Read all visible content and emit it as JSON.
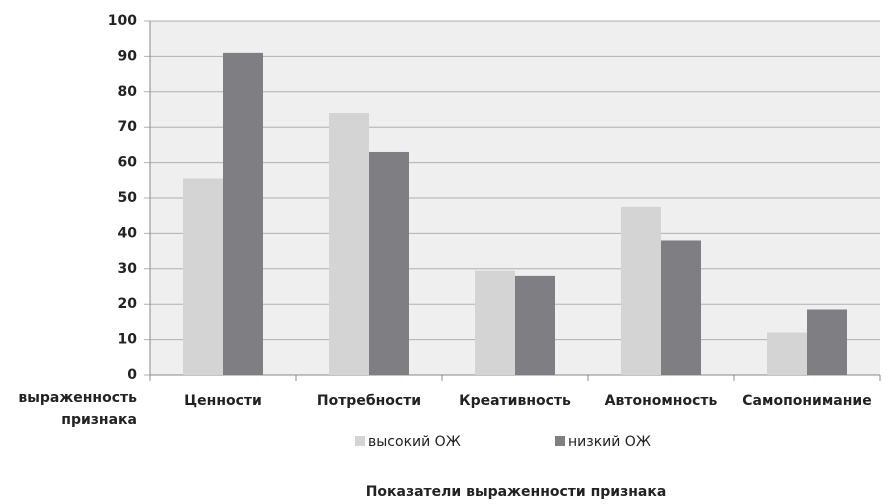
{
  "chart_data": {
    "type": "bar",
    "title": "Показатели выраженности признака",
    "y_label": "выраженность признака",
    "categories": [
      "Ценности",
      "Потребности",
      "Креативность",
      "Автономность",
      "Самопонимание"
    ],
    "series": [
      {
        "name": "высокий ОЖ",
        "color": "#d4d4d4",
        "values": [
          55.5,
          74,
          29.5,
          47.5,
          12
        ]
      },
      {
        "name": "низкий ОЖ",
        "color": "#7f7f83",
        "values": [
          91,
          63,
          28,
          38,
          18.5
        ]
      }
    ],
    "ylim": [
      0,
      100
    ],
    "yticks": [
      0,
      10,
      20,
      30,
      40,
      50,
      60,
      70,
      80,
      90,
      100
    ],
    "grid": true
  }
}
